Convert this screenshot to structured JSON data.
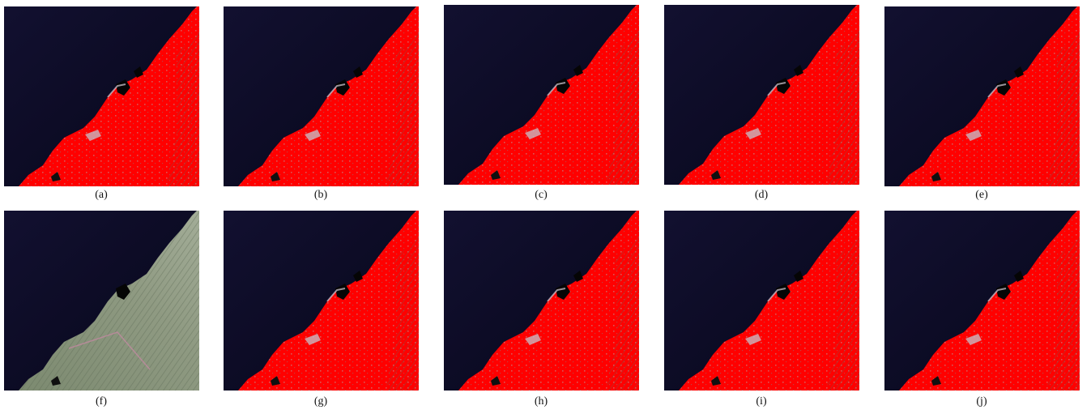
{
  "panels": [
    {
      "label": "(a)"
    },
    {
      "label": "(b)"
    },
    {
      "label": "(c)"
    },
    {
      "label": "(d)"
    },
    {
      "label": "(e)"
    },
    {
      "label": "(f)"
    },
    {
      "label": "(g)"
    },
    {
      "label": "(h)"
    },
    {
      "label": "(i)"
    },
    {
      "label": "(j)"
    }
  ]
}
